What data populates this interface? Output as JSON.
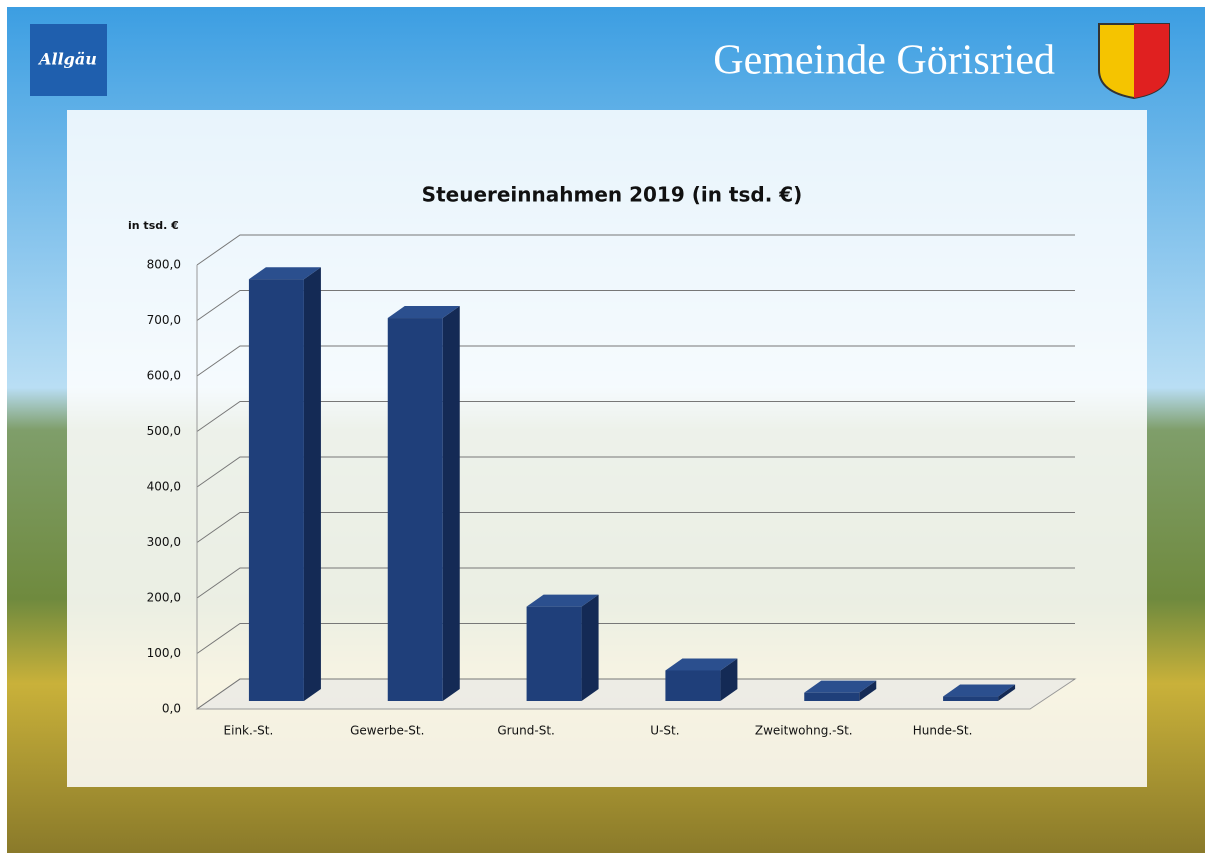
{
  "header": {
    "logo": "Allgäu",
    "title": "Gemeinde Görisried"
  },
  "chart_data": {
    "type": "bar3d",
    "title": "Steuereinnahmen 2019 (in tsd. €)",
    "y_label": "in tsd. €",
    "categories": [
      "Eink.-St.",
      "Gewerbe-St.",
      "Grund-St.",
      "U-St.",
      "Zweitwohng.-St.",
      "Hunde-St."
    ],
    "values": [
      760,
      690,
      170,
      55,
      15,
      8
    ],
    "color": "#1f3f7a",
    "ylim": [
      0,
      800
    ],
    "yticks": [
      {
        "value": 0,
        "label": "0,0"
      },
      {
        "value": 100,
        "label": "100,0"
      },
      {
        "value": 200,
        "label": "200,0"
      },
      {
        "value": 300,
        "label": "300,0"
      },
      {
        "value": 400,
        "label": "400,0"
      },
      {
        "value": 500,
        "label": "500,0"
      },
      {
        "value": 600,
        "label": "600,0"
      },
      {
        "value": 700,
        "label": "700,0"
      },
      {
        "value": 800,
        "label": "800,0"
      }
    ],
    "grid": true
  }
}
